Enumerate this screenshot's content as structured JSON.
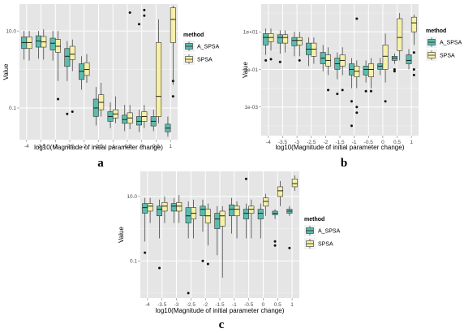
{
  "colors": {
    "A_SPSA": "#5bbcad",
    "SPSA": "#f6f0a8",
    "panel_bg": "#e5e5e5",
    "grid": "#ffffff"
  },
  "chart_data": [
    {
      "type": "boxplot",
      "letter": "a",
      "xlabel": "log10(Magnitude of initial parameter change)",
      "ylabel": "Value",
      "yscale": "log",
      "ylim": [
        0.015,
        50
      ],
      "yticks": [
        "0.1",
        "10.0"
      ],
      "yticks_values": [
        0.1,
        10
      ],
      "categories": [
        "-4",
        "-3.5",
        "-3",
        "-2.5",
        "-2",
        "-1.5",
        "-1",
        "-0.5",
        "0",
        "0.5",
        "1"
      ],
      "grid": true,
      "legend": {
        "title": "method",
        "position": "right",
        "entries": [
          "A_SPSA",
          "SPSA"
        ]
      },
      "series": [
        {
          "name": "A_SPSA",
          "boxes": [
            {
              "x": -4,
              "whislo": 1.8,
              "q1": 3.5,
              "med": 5,
              "q3": 7,
              "whishi": 10,
              "outliers": []
            },
            {
              "x": -3.5,
              "whislo": 1.9,
              "q1": 3.8,
              "med": 5.5,
              "q3": 7.5,
              "whishi": 10,
              "outliers": []
            },
            {
              "x": -3,
              "whislo": 1.7,
              "q1": 3.2,
              "med": 4.8,
              "q3": 6.5,
              "whishi": 10,
              "outliers": []
            },
            {
              "x": -2.5,
              "whislo": 0.5,
              "q1": 1.2,
              "med": 2.2,
              "q3": 3.5,
              "whishi": 5.5,
              "outliers": [
                0.07
              ]
            },
            {
              "x": -2,
              "whislo": 0.3,
              "q1": 0.55,
              "med": 0.9,
              "q3": 1.4,
              "whishi": 2.2,
              "outliers": []
            },
            {
              "x": -1.5,
              "whislo": 0.035,
              "q1": 0.06,
              "med": 0.1,
              "q3": 0.17,
              "whishi": 0.35,
              "outliers": []
            },
            {
              "x": -1,
              "whislo": 0.03,
              "q1": 0.045,
              "med": 0.06,
              "q3": 0.08,
              "whishi": 0.14,
              "outliers": []
            },
            {
              "x": -0.5,
              "whislo": 0.025,
              "q1": 0.04,
              "med": 0.05,
              "q3": 0.065,
              "whishi": 0.12,
              "outliers": []
            },
            {
              "x": 0,
              "whislo": 0.024,
              "q1": 0.036,
              "med": 0.045,
              "q3": 0.06,
              "whishi": 0.09,
              "outliers": [
                15
              ]
            },
            {
              "x": 0.5,
              "whislo": 0.025,
              "q1": 0.034,
              "med": 0.045,
              "q3": 0.06,
              "whishi": 0.09,
              "outliers": []
            },
            {
              "x": 1,
              "whislo": 0.018,
              "q1": 0.024,
              "med": 0.03,
              "q3": 0.038,
              "whishi": 0.06,
              "outliers": []
            }
          ]
        },
        {
          "name": "SPSA",
          "boxes": [
            {
              "x": -4,
              "whislo": 1.7,
              "q1": 3.5,
              "med": 5,
              "q3": 7,
              "whishi": 10,
              "outliers": []
            },
            {
              "x": -3.5,
              "whislo": 1.8,
              "q1": 3.8,
              "med": 5.2,
              "q3": 7.2,
              "whishi": 11,
              "outliers": []
            },
            {
              "x": -3,
              "whislo": 0.5,
              "q1": 2.8,
              "med": 4,
              "q3": 6,
              "whishi": 10,
              "outliers": [
                0.17
              ]
            },
            {
              "x": -2.5,
              "whislo": 0.9,
              "q1": 1.8,
              "med": 2.5,
              "q3": 4,
              "whishi": 6,
              "outliers": [
                0.08
              ]
            },
            {
              "x": -2,
              "whislo": 0.45,
              "q1": 0.7,
              "med": 1,
              "q3": 1.5,
              "whishi": 2.5,
              "outliers": []
            },
            {
              "x": -1.5,
              "whislo": 0.06,
              "q1": 0.09,
              "med": 0.14,
              "q3": 0.22,
              "whishi": 0.45,
              "outliers": []
            },
            {
              "x": -1,
              "whislo": 0.04,
              "q1": 0.055,
              "med": 0.07,
              "q3": 0.09,
              "whishi": 0.2,
              "outliers": []
            },
            {
              "x": -0.5,
              "whislo": 0.028,
              "q1": 0.04,
              "med": 0.055,
              "q3": 0.075,
              "whishi": 0.12,
              "outliers": [
                30
              ]
            },
            {
              "x": 0,
              "whislo": 0.03,
              "q1": 0.045,
              "med": 0.06,
              "q3": 0.08,
              "whishi": 0.12,
              "outliers": [
                25,
                35
              ]
            },
            {
              "x": 0.5,
              "whislo": 0.04,
              "q1": 0.06,
              "med": 0.2,
              "q3": 5,
              "whishi": 20,
              "outliers": []
            },
            {
              "x": 1,
              "whislo": 0.4,
              "q1": 5,
              "med": 20,
              "q3": 40,
              "whishi": 45,
              "outliers": [
                0.2,
                0.5
              ]
            }
          ]
        }
      ]
    },
    {
      "type": "boxplot",
      "letter": "b",
      "xlabel": "log10(Magnitude of initial parameter change)",
      "ylabel": "Value",
      "yscale": "log",
      "ylim": [
        3e-05,
        300
      ],
      "yticks": [
        "1e-03",
        "1e-01",
        "1e+01"
      ],
      "yticks_values": [
        0.001,
        0.1,
        10
      ],
      "categories": [
        "-4",
        "-3.5",
        "-3",
        "-2.5",
        "-2",
        "-1.5",
        "-1",
        "-0.5",
        "0",
        "0.5",
        "1"
      ],
      "grid": true,
      "legend": {
        "title": "method",
        "position": "right",
        "entries": [
          "A_SPSA",
          "SPSA"
        ]
      },
      "series": [
        {
          "name": "A_SPSA",
          "boxes": [
            {
              "x": -4,
              "whislo": 0.6,
              "q1": 2,
              "med": 5,
              "q3": 8,
              "whishi": 15,
              "outliers": [
                0.3
              ]
            },
            {
              "x": -3.5,
              "whislo": 0.7,
              "q1": 2.5,
              "med": 5,
              "q3": 7,
              "whishi": 12,
              "outliers": [
                0.25
              ]
            },
            {
              "x": -3,
              "whislo": 0.5,
              "q1": 1.8,
              "med": 3.5,
              "q3": 5,
              "whishi": 10,
              "outliers": []
            },
            {
              "x": -2.5,
              "whislo": 0.15,
              "q1": 0.6,
              "med": 1.2,
              "q3": 2.5,
              "whishi": 5,
              "outliers": []
            },
            {
              "x": -2,
              "whislo": 0.08,
              "q1": 0.2,
              "med": 0.4,
              "q3": 0.8,
              "whishi": 2,
              "outliers": []
            },
            {
              "x": -1.5,
              "whislo": 0.03,
              "q1": 0.1,
              "med": 0.2,
              "q3": 0.4,
              "whishi": 0.8,
              "outliers": [
                0.005
              ]
            },
            {
              "x": -1,
              "whislo": 0.01,
              "q1": 0.05,
              "med": 0.1,
              "q3": 0.2,
              "whishi": 0.4,
              "outliers": [
                0.002,
                0.0001
              ]
            },
            {
              "x": -0.5,
              "whislo": 0.02,
              "q1": 0.05,
              "med": 0.1,
              "q3": 0.15,
              "whishi": 0.3,
              "outliers": [
                0.007
              ]
            },
            {
              "x": 0,
              "whislo": 0.05,
              "q1": 0.1,
              "med": 0.15,
              "q3": 0.2,
              "whishi": 0.4,
              "outliers": []
            },
            {
              "x": 0.5,
              "whislo": 0.2,
              "q1": 0.3,
              "med": 0.4,
              "q3": 0.5,
              "whishi": 0.7,
              "outliers": [
                0.1,
                0.08
              ]
            },
            {
              "x": 1,
              "whislo": 0.1,
              "q1": 0.2,
              "med": 0.3,
              "q3": 0.6,
              "whishi": 1.2,
              "outliers": []
            }
          ]
        },
        {
          "name": "SPSA",
          "boxes": [
            {
              "x": -4,
              "whislo": 1,
              "q1": 3,
              "med": 5,
              "q3": 8,
              "whishi": 15,
              "outliers": [
                0.35
              ]
            },
            {
              "x": -3.5,
              "whislo": 0.8,
              "q1": 2.5,
              "med": 5,
              "q3": 7,
              "whishi": 12,
              "outliers": []
            },
            {
              "x": -3,
              "whislo": 0.5,
              "q1": 2,
              "med": 3.5,
              "q3": 5,
              "whishi": 10,
              "outliers": [
                0.3
              ]
            },
            {
              "x": -2.5,
              "whislo": 0.2,
              "q1": 0.5,
              "med": 1.2,
              "q3": 2.5,
              "whishi": 5,
              "outliers": []
            },
            {
              "x": -2,
              "whislo": 0.05,
              "q1": 0.15,
              "med": 0.3,
              "q3": 0.6,
              "whishi": 1.5,
              "outliers": [
                0.008
              ]
            },
            {
              "x": -1.5,
              "whislo": 0.05,
              "q1": 0.15,
              "med": 0.3,
              "q3": 0.6,
              "whishi": 1.5,
              "outliers": [
                0.008
              ]
            },
            {
              "x": -1,
              "whislo": 0.01,
              "q1": 0.04,
              "med": 0.08,
              "q3": 0.15,
              "whishi": 0.3,
              "outliers": [
                0.001,
                0.0005,
                50
              ]
            },
            {
              "x": -0.5,
              "whislo": 0.01,
              "q1": 0.04,
              "med": 0.1,
              "q3": 0.2,
              "whishi": 0.4,
              "outliers": [
                0.007
              ]
            },
            {
              "x": 0,
              "whislo": 0.02,
              "q1": 0.1,
              "med": 0.5,
              "q3": 2,
              "whishi": 8,
              "outliers": [
                0.002
              ]
            },
            {
              "x": 0.5,
              "whislo": 0.3,
              "q1": 1,
              "med": 5,
              "q3": 50,
              "whishi": 100,
              "outliers": []
            },
            {
              "x": 1,
              "whislo": 2,
              "q1": 10,
              "med": 30,
              "q3": 60,
              "whishi": 80,
              "outliers": [
                0.1,
                0.05,
                0.8
              ]
            }
          ]
        }
      ]
    },
    {
      "type": "boxplot",
      "letter": "c",
      "xlabel": "log10(Magnitude of initial parameter change)",
      "ylabel": "Value",
      "yscale": "log",
      "ylim": [
        0.007,
        60
      ],
      "yticks": [
        "0.1",
        "10.0"
      ],
      "yticks_values": [
        0.1,
        10
      ],
      "categories": [
        "-4",
        "-3.5",
        "-3",
        "-2.5",
        "-2",
        "-1.5",
        "-1",
        "-0.5",
        "0",
        "0.5",
        "1"
      ],
      "grid": true,
      "legend": {
        "title": "method",
        "position": "right",
        "entries": [
          "A_SPSA",
          "SPSA"
        ]
      },
      "series": [
        {
          "name": "A_SPSA",
          "boxes": [
            {
              "x": -4,
              "whislo": 0.4,
              "q1": 3,
              "med": 4.5,
              "q3": 6,
              "whishi": 9,
              "outliers": [
                0.18
              ]
            },
            {
              "x": -3.5,
              "whislo": 0.5,
              "q1": 2.5,
              "med": 4,
              "q3": 5,
              "whishi": 8,
              "outliers": [
                0.06
              ]
            },
            {
              "x": -3,
              "whislo": 1.5,
              "q1": 3.5,
              "med": 5,
              "q3": 6,
              "whishi": 9,
              "outliers": []
            },
            {
              "x": -2.5,
              "whislo": 0.5,
              "q1": 1.5,
              "med": 2.5,
              "q3": 4.5,
              "whishi": 7,
              "outliers": [
                0.01
              ]
            },
            {
              "x": -2,
              "whislo": 0.8,
              "q1": 2.5,
              "med": 4,
              "q3": 5,
              "whishi": 8,
              "outliers": [
                0.1
              ]
            },
            {
              "x": -1.5,
              "whislo": 0.15,
              "q1": 1,
              "med": 2,
              "q3": 3,
              "whishi": 5,
              "outliers": []
            },
            {
              "x": -1,
              "whislo": 0.7,
              "q1": 2.5,
              "med": 4,
              "q3": 5.5,
              "whishi": 9,
              "outliers": []
            },
            {
              "x": -0.5,
              "whislo": 0.5,
              "q1": 2,
              "med": 3,
              "q3": 4,
              "whishi": 6,
              "outliers": [
                35
              ]
            },
            {
              "x": 0,
              "whislo": 0.5,
              "q1": 2,
              "med": 3,
              "q3": 4,
              "whishi": 6,
              "outliers": []
            },
            {
              "x": 0.5,
              "whislo": 2,
              "q1": 2.7,
              "med": 3,
              "q3": 3.5,
              "whishi": 4,
              "outliers": [
                0.4,
                0.3
              ]
            },
            {
              "x": 1,
              "whislo": 2.5,
              "q1": 3,
              "med": 3.5,
              "q3": 4,
              "whishi": 5,
              "outliers": [
                0.25
              ]
            }
          ]
        },
        {
          "name": "SPSA",
          "boxes": [
            {
              "x": -4,
              "whislo": 1.5,
              "q1": 3.5,
              "med": 5,
              "q3": 6,
              "whishi": 9,
              "outliers": []
            },
            {
              "x": -3.5,
              "whislo": 1.5,
              "q1": 3.5,
              "med": 5,
              "q3": 6.5,
              "whishi": 10,
              "outliers": []
            },
            {
              "x": -3,
              "whislo": 1.5,
              "q1": 3.5,
              "med": 5,
              "q3": 6.5,
              "whishi": 11,
              "outliers": []
            },
            {
              "x": -2.5,
              "whislo": 0.5,
              "q1": 2,
              "med": 3,
              "q3": 4.5,
              "whishi": 8,
              "outliers": []
            },
            {
              "x": -2,
              "whislo": 0.3,
              "q1": 1.5,
              "med": 2.5,
              "q3": 4,
              "whishi": 6,
              "outliers": [
                0.08
              ]
            },
            {
              "x": -1.5,
              "whislo": 0.03,
              "q1": 1.2,
              "med": 2.5,
              "q3": 3.5,
              "whishi": 5,
              "outliers": []
            },
            {
              "x": -1,
              "whislo": 0.5,
              "q1": 2.5,
              "med": 4,
              "q3": 5,
              "whishi": 7,
              "outliers": []
            },
            {
              "x": -0.5,
              "whislo": 0.5,
              "q1": 3,
              "med": 4,
              "q3": 5,
              "whishi": 8,
              "outliers": []
            },
            {
              "x": 0,
              "whislo": 2.5,
              "q1": 5,
              "med": 7,
              "q3": 9,
              "whishi": 12,
              "outliers": []
            },
            {
              "x": 0.5,
              "whislo": 5,
              "q1": 10,
              "med": 15,
              "q3": 20,
              "whishi": 30,
              "outliers": []
            },
            {
              "x": 1,
              "whislo": 15,
              "q1": 20,
              "med": 25,
              "q3": 35,
              "whishi": 45,
              "outliers": []
            }
          ]
        }
      ]
    }
  ]
}
